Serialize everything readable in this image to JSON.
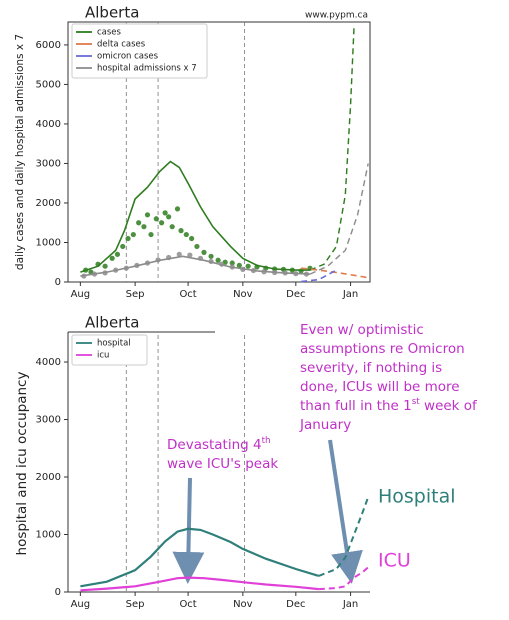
{
  "chart_data": [
    {
      "type": "line",
      "title": "Alberta",
      "source": "www.pypm.ca",
      "ylabel": "daily cases and daily hospital admissions x 7",
      "xlim": [
        -7,
        164
      ],
      "xticks": [
        {
          "value": 0,
          "label": "Aug"
        },
        {
          "value": 31,
          "label": "Sep"
        },
        {
          "value": 61,
          "label": "Oct"
        },
        {
          "value": 92,
          "label": "Nov"
        },
        {
          "value": 122,
          "label": "Dec"
        },
        {
          "value": 153,
          "label": "Jan"
        }
      ],
      "ylim": [
        0,
        6580
      ],
      "yticks": [
        0,
        1000,
        2000,
        3000,
        4000,
        5000,
        6000
      ],
      "vlines": [
        26,
        44,
        93
      ],
      "legend": "upper left",
      "series": [
        {
          "name": "cases",
          "color": "#2e7d1f",
          "x": [
            0,
            10,
            20,
            25,
            31,
            38,
            45,
            51,
            56,
            61,
            68,
            75,
            85,
            92,
            100,
            110,
            122,
            130
          ],
          "values": [
            250,
            400,
            800,
            1300,
            2100,
            2400,
            2800,
            3050,
            2900,
            2500,
            1900,
            1400,
            900,
            600,
            420,
            330,
            300,
            300
          ],
          "projection": {
            "x": [
              130,
              138,
              145,
              150,
              153,
              155
            ],
            "values": [
              300,
              450,
              900,
              2200,
              4500,
              6500
            ]
          },
          "points": {
            "x": [
              3,
              6,
              10,
              14,
              18,
              21,
              24,
              27,
              30,
              33,
              36,
              38,
              40,
              43,
              46,
              48,
              50,
              52,
              55,
              57,
              60,
              63,
              66,
              70,
              74,
              78,
              82,
              86,
              90,
              95,
              100,
              105,
              110,
              115,
              120,
              125,
              130
            ],
            "values": [
              300,
              250,
              450,
              400,
              600,
              700,
              900,
              1100,
              1200,
              1500,
              1400,
              1700,
              1200,
              1600,
              1500,
              1750,
              1650,
              1400,
              1850,
              1300,
              1200,
              1100,
              900,
              750,
              650,
              550,
              500,
              480,
              420,
              400,
              380,
              350,
              330,
              320,
              300,
              280,
              350
            ]
          }
        },
        {
          "name": "delta cases",
          "color": "#e07b4a",
          "x": [
            125,
            135,
            145,
            155,
            163
          ],
          "values": [
            350,
            300,
            240,
            170,
            110
          ],
          "dashed": true
        },
        {
          "name": "omicron cases",
          "color": "#6b6bd6",
          "x": [
            125,
            135,
            145
          ],
          "values": [
            10,
            60,
            300
          ],
          "dashed": true
        },
        {
          "name": "hospital admissions x 7",
          "color": "#8c8c8c",
          "x": [
            0,
            15,
            31,
            45,
            58,
            70,
            85,
            100,
            115,
            130
          ],
          "values": [
            150,
            250,
            400,
            550,
            650,
            550,
            380,
            280,
            230,
            200
          ],
          "projection": {
            "x": [
              130,
              140,
              150,
              157,
              163
            ],
            "values": [
              200,
              400,
              800,
              1700,
              3000
            ]
          },
          "points": {
            "x": [
              2,
              8,
              14,
              20,
              26,
              32,
              38,
              44,
              50,
              56,
              62,
              68,
              74,
              80,
              86,
              92,
              98,
              104,
              110,
              116,
              122,
              128
            ],
            "values": [
              150,
              200,
              230,
              300,
              350,
              420,
              480,
              560,
              620,
              700,
              680,
              600,
              520,
              450,
              380,
              320,
              290,
              260,
              240,
              230,
              210,
              200
            ]
          }
        }
      ]
    },
    {
      "type": "line",
      "title": "Alberta",
      "ylabel": "hospital and icu occupancy",
      "xlim": [
        -7,
        164
      ],
      "xticks": [
        {
          "value": 0,
          "label": "Aug"
        },
        {
          "value": 31,
          "label": "Sep"
        },
        {
          "value": 61,
          "label": "Oct"
        },
        {
          "value": 92,
          "label": "Nov"
        },
        {
          "value": 122,
          "label": "Dec"
        },
        {
          "value": 153,
          "label": "Jan"
        }
      ],
      "ylim": [
        0,
        4470
      ],
      "yticks": [
        0,
        1000,
        2000,
        3000,
        4000
      ],
      "vlines": [
        26,
        44,
        93
      ],
      "legend": "upper left",
      "series": [
        {
          "name": "hospital",
          "color": "#2f7f7a",
          "x": [
            0,
            15,
            31,
            40,
            48,
            55,
            61,
            68,
            75,
            85,
            92,
            105,
            122,
            135
          ],
          "values": [
            100,
            180,
            380,
            620,
            880,
            1050,
            1100,
            1080,
            1000,
            870,
            750,
            580,
            400,
            280
          ],
          "projection": {
            "x": [
              135,
              145,
              150,
              155,
              160,
              163
            ],
            "values": [
              280,
              400,
              600,
              1000,
              1400,
              1650
            ]
          }
        },
        {
          "name": "icu",
          "color": "#e040d8",
          "x": [
            0,
            15,
            31,
            45,
            55,
            61,
            70,
            80,
            92,
            105,
            122,
            135
          ],
          "values": [
            30,
            60,
            100,
            180,
            240,
            250,
            240,
            210,
            170,
            130,
            90,
            50
          ],
          "projection": {
            "x": [
              135,
              145,
              150,
              155,
              160,
              163
            ],
            "values": [
              50,
              70,
              100,
              250,
              350,
              430
            ]
          }
        }
      ],
      "annotations": [
        {
          "color": "#c030c8",
          "lines": [
            "Even w/ optimistic",
            "assumptions re Omicron",
            "severity, if nothing is",
            "done, ICUs will be more",
            [
              "than full in the 1",
              "st",
              " week of"
            ],
            "January"
          ]
        },
        {
          "color": "#c030c8",
          "lines": [
            [
              "Devastating 4",
              "th"
            ],
            "wave ICU's peak"
          ]
        },
        {
          "color": "#2f7f7a",
          "lines": [
            "Hospital"
          ]
        },
        {
          "color": "#e040d8",
          "lines": [
            "ICU"
          ]
        }
      ]
    }
  ]
}
